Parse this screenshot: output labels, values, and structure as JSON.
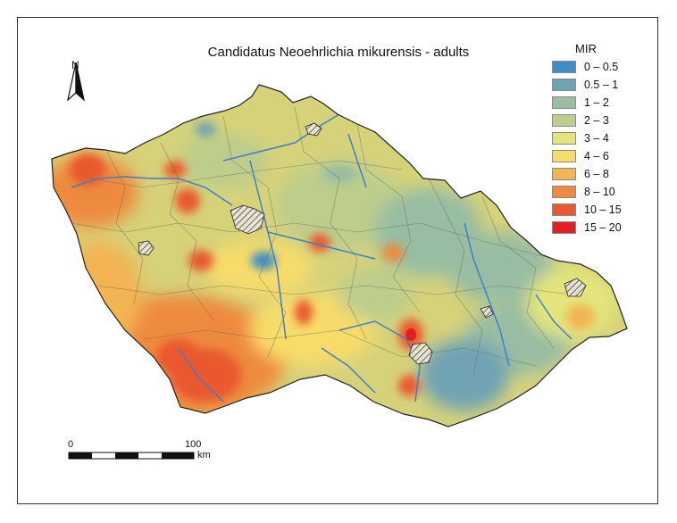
{
  "map": {
    "title": "Candidatus Neoehrlichia mikurensis - adults",
    "north_label": "N",
    "legend": {
      "title": "MIR",
      "items": [
        {
          "label": "0 – 0.5",
          "color": "#3b8fc4"
        },
        {
          "label": "0.5 – 1",
          "color": "#6fa3b4"
        },
        {
          "label": "1 – 2",
          "color": "#98bda3"
        },
        {
          "label": "2 – 3",
          "color": "#bccd8c"
        },
        {
          "label": "3 – 4",
          "color": "#e3e57c"
        },
        {
          "label": "4 – 6",
          "color": "#f8dc6a"
        },
        {
          "label": "6 – 8",
          "color": "#f3b452"
        },
        {
          "label": "8 – 10",
          "color": "#ee8a3e"
        },
        {
          "label": "10 – 15",
          "color": "#e9582f"
        },
        {
          "label": "15 – 20",
          "color": "#e31f25"
        }
      ]
    },
    "scalebar": {
      "start_label": "0",
      "end_label": "100",
      "unit": "km"
    }
  }
}
